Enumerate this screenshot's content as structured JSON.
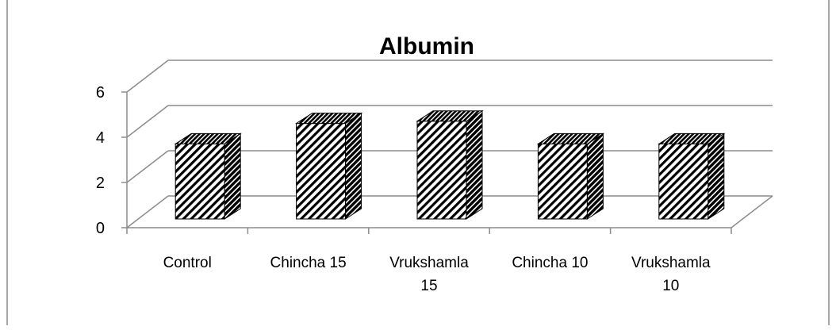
{
  "chart_data": {
    "type": "bar",
    "title": "Albumin",
    "xlabel": "",
    "ylabel": "",
    "categories": [
      [
        "Control"
      ],
      [
        "Chincha 15"
      ],
      [
        "Vrukshamla",
        "15"
      ],
      [
        "Chincha  10"
      ],
      [
        "Vrukshamla",
        "10"
      ]
    ],
    "values": [
      3.3,
      4.2,
      4.3,
      3.3,
      3.3
    ],
    "ylim": [
      0,
      6
    ],
    "yticks": [
      "0",
      "2",
      "4",
      "6"
    ],
    "grid": true,
    "legend": "none",
    "style": "3d-hatched",
    "colors": {
      "bar_fill": "#ffffff",
      "hatch": "#000000",
      "grid": "#8c8c8c",
      "axis": "#8c8c8c",
      "frame": "#8c8c8c"
    }
  }
}
